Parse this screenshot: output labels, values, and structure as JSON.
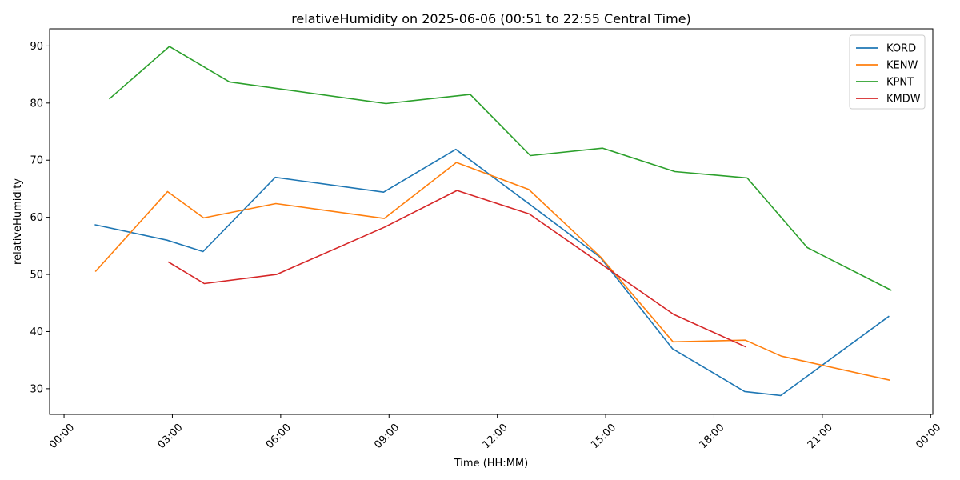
{
  "chart_data": {
    "type": "line",
    "title": "relativeHumidity on 2025-06-06 (00:51 to 22:55 Central Time)",
    "xlabel": "Time (HH:MM)",
    "ylabel": "relativeHumidity",
    "x_ticks": [
      "00:00",
      "03:00",
      "06:00",
      "09:00",
      "12:00",
      "15:00",
      "18:00",
      "21:00",
      "00:00"
    ],
    "y_ticks": [
      30,
      40,
      50,
      60,
      70,
      80,
      90
    ],
    "xlim": [
      "2025-06-06 00:00",
      "2025-06-07 00:00"
    ],
    "ylim": [
      25.5,
      93
    ],
    "grid": false,
    "legend_position": "top-right",
    "series": [
      {
        "name": "KORD",
        "color": "#1f77b4",
        "points": [
          {
            "time": "00:51",
            "value": 58.7
          },
          {
            "time": "02:51",
            "value": 56.0
          },
          {
            "time": "03:51",
            "value": 54.0
          },
          {
            "time": "05:51",
            "value": 67.0
          },
          {
            "time": "08:51",
            "value": 64.4
          },
          {
            "time": "10:51",
            "value": 71.9
          },
          {
            "time": "12:51",
            "value": 62.5
          },
          {
            "time": "14:51",
            "value": 53.0
          },
          {
            "time": "16:51",
            "value": 37.0
          },
          {
            "time": "18:51",
            "value": 29.5
          },
          {
            "time": "19:51",
            "value": 28.8
          },
          {
            "time": "22:51",
            "value": 42.7
          }
        ]
      },
      {
        "name": "KENW",
        "color": "#ff7f0e",
        "points": [
          {
            "time": "00:52",
            "value": 50.5
          },
          {
            "time": "02:52",
            "value": 64.5
          },
          {
            "time": "03:52",
            "value": 59.9
          },
          {
            "time": "05:52",
            "value": 62.4
          },
          {
            "time": "08:52",
            "value": 59.8
          },
          {
            "time": "10:52",
            "value": 69.6
          },
          {
            "time": "12:52",
            "value": 64.9
          },
          {
            "time": "14:52",
            "value": 53.0
          },
          {
            "time": "16:52",
            "value": 38.2
          },
          {
            "time": "18:52",
            "value": 38.5
          },
          {
            "time": "19:52",
            "value": 35.7
          },
          {
            "time": "22:52",
            "value": 31.5
          }
        ]
      },
      {
        "name": "KPNT",
        "color": "#2ca02c",
        "points": [
          {
            "time": "01:15",
            "value": 80.7
          },
          {
            "time": "02:55",
            "value": 89.9
          },
          {
            "time": "04:35",
            "value": 83.7
          },
          {
            "time": "08:55",
            "value": 79.9
          },
          {
            "time": "11:15",
            "value": 81.5
          },
          {
            "time": "12:55",
            "value": 70.8
          },
          {
            "time": "14:55",
            "value": 72.1
          },
          {
            "time": "16:55",
            "value": 68.0
          },
          {
            "time": "18:55",
            "value": 66.9
          },
          {
            "time": "20:35",
            "value": 54.7
          },
          {
            "time": "22:55",
            "value": 47.2
          }
        ]
      },
      {
        "name": "KMDW",
        "color": "#d62728",
        "points": [
          {
            "time": "02:53",
            "value": 52.2
          },
          {
            "time": "03:53",
            "value": 48.4
          },
          {
            "time": "05:53",
            "value": 50.0
          },
          {
            "time": "08:53",
            "value": 58.3
          },
          {
            "time": "10:53",
            "value": 64.7
          },
          {
            "time": "12:53",
            "value": 60.6
          },
          {
            "time": "16:53",
            "value": 43.0
          },
          {
            "time": "18:53",
            "value": 37.3
          }
        ]
      }
    ]
  }
}
